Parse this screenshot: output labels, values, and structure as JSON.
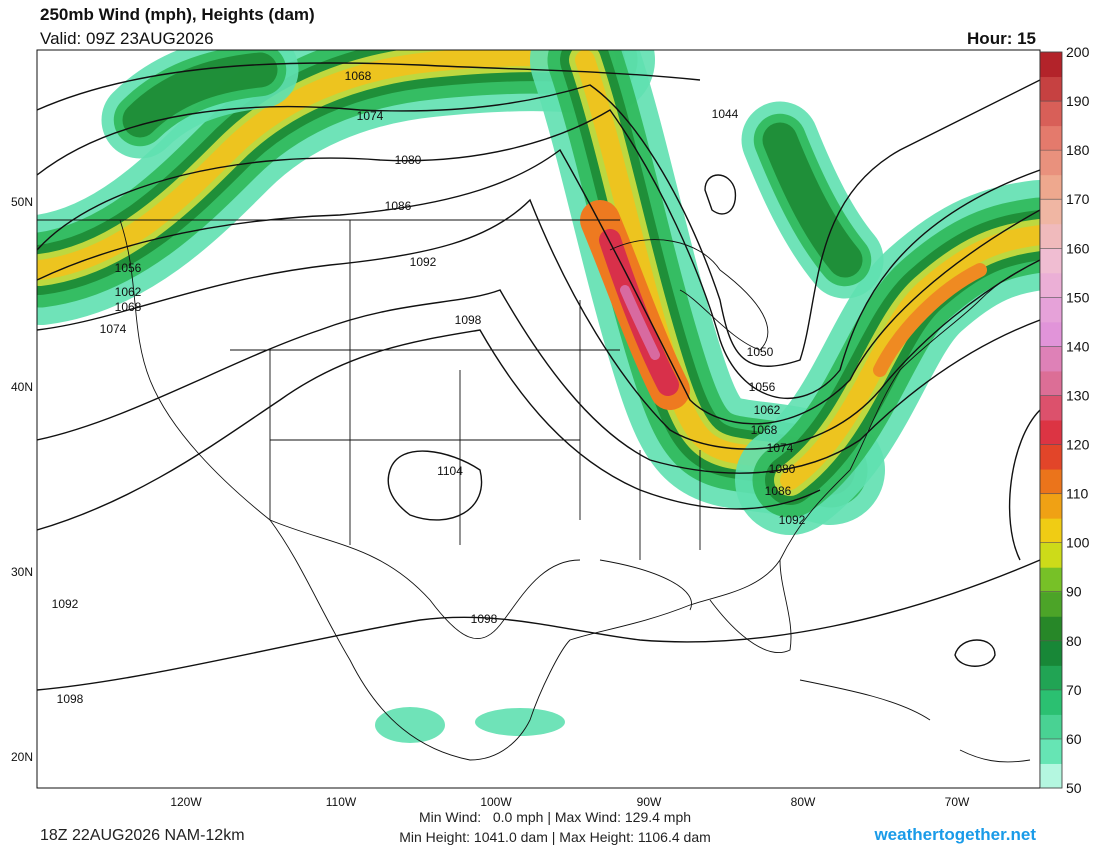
{
  "header": {
    "title": "250mb Wind (mph), Heights (dam)",
    "valid": "Valid: 09Z 23AUG2026",
    "hour": "Hour: 15"
  },
  "map": {
    "lat_labels": [
      "50N",
      "40N",
      "30N",
      "20N"
    ],
    "lon_labels": [
      "120W",
      "110W",
      "100W",
      "90W",
      "80W",
      "70W"
    ],
    "contour_labels": [
      "1068",
      "1074",
      "1080",
      "1086",
      "1092",
      "1098",
      "1056",
      "1062",
      "1068",
      "1074",
      "1044",
      "1050",
      "1056",
      "1062",
      "1068",
      "1074",
      "1080",
      "1086",
      "1092",
      "1104",
      "1098",
      "1092",
      "1098"
    ]
  },
  "colorbar": {
    "ticks": [
      200,
      190,
      180,
      170,
      160,
      150,
      140,
      130,
      120,
      110,
      100,
      90,
      80,
      70,
      60,
      50
    ]
  },
  "footer": {
    "run": "18Z 22AUG2026 NAM-12km",
    "wind": "Min Wind:   0.0 mph | Max Wind: 129.4 mph",
    "height": "Min Height: 1041.0 dam | Max Height: 1106.4 dam",
    "site": "weathertogether.net"
  }
}
